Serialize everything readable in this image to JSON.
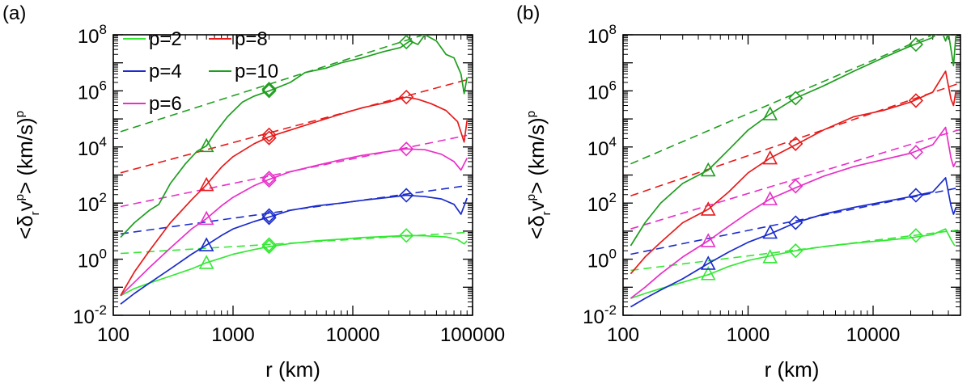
{
  "chart_data": [
    {
      "type": "line",
      "panel_label": "(a)",
      "xlabel": "r (km)",
      "ylabel_parts": {
        "open": "<δ",
        "sub": "r",
        "v": "v",
        "sup": "p",
        "close": "> (km/s)",
        "sup2": "p"
      },
      "xscale": "log",
      "yscale": "log",
      "xlim": [
        100,
        100000
      ],
      "ylim": [
        0.01,
        100000000
      ],
      "xticks": [
        100,
        1000,
        10000,
        100000
      ],
      "xticklabels": [
        "100",
        "1000",
        "10000",
        "100000"
      ],
      "yticks": [
        0.01,
        1,
        100,
        10000,
        1000000,
        100000000
      ],
      "ytick_mantissa": "10",
      "ytick_exponents": [
        "-2",
        "0",
        "2",
        "4",
        "6",
        "8"
      ],
      "legend": [
        "p=2",
        "p=8",
        "p=4",
        "p=10",
        "p=6"
      ],
      "series": [
        {
          "name": "p=2",
          "color": "#33e833",
          "x": [
            115,
            150,
            200,
            300,
            450,
            600,
            800,
            1000,
            1500,
            2000,
            3000,
            5000,
            8000,
            12000,
            20000,
            28000,
            40000,
            60000,
            75000,
            85000,
            90000
          ],
          "y": [
            0.05,
            0.09,
            0.14,
            0.25,
            0.45,
            0.75,
            1.1,
            1.5,
            2.2,
            2.8,
            3.6,
            4.5,
            5.2,
            5.9,
            6.5,
            7.0,
            6.8,
            6.2,
            5.0,
            3.5,
            4.5
          ],
          "fit_x": [
            115,
            90000
          ],
          "fit_y": [
            1.6,
            9.0
          ],
          "triangle": [
            600,
            0.75
          ],
          "diamonds": [
            [
              2000,
              2.8
            ],
            [
              2000,
              3.3
            ],
            [
              28000,
              7.0
            ]
          ]
        },
        {
          "name": "p=4",
          "color": "#1a2bcc",
          "x": [
            115,
            150,
            200,
            300,
            450,
            600,
            800,
            1000,
            1500,
            2000,
            3000,
            5000,
            8000,
            12000,
            20000,
            28000,
            40000,
            55000,
            70000,
            80000,
            90000
          ],
          "y": [
            0.025,
            0.06,
            0.14,
            0.45,
            1.5,
            3.2,
            7,
            12,
            22,
            32,
            55,
            80,
            100,
            125,
            160,
            190,
            170,
            140,
            90,
            40,
            150
          ],
          "fit_x": [
            115,
            90000
          ],
          "fit_y": [
            8,
            420
          ],
          "triangle": [
            600,
            3.2
          ],
          "diamonds": [
            [
              2000,
              30
            ],
            [
              2000,
              36
            ],
            [
              28000,
              190
            ]
          ]
        },
        {
          "name": "p=6",
          "color": "#e830c8",
          "x": [
            115,
            150,
            200,
            300,
            450,
            600,
            800,
            1000,
            1500,
            2000,
            3000,
            5000,
            8000,
            12000,
            20000,
            28000,
            40000,
            55000,
            70000,
            80000,
            90000
          ],
          "y": [
            0.05,
            0.15,
            0.5,
            2.5,
            12,
            28,
            80,
            160,
            420,
            700,
            1300,
            2200,
            3500,
            5000,
            7000,
            8500,
            8000,
            5500,
            3000,
            1500,
            4000
          ],
          "fit_x": [
            115,
            90000
          ],
          "fit_y": [
            75,
            26000
          ],
          "triangle": [
            600,
            28
          ],
          "diamonds": [
            [
              2000,
              650
            ],
            [
              2000,
              780
            ],
            [
              28000,
              8500
            ]
          ]
        },
        {
          "name": "p=8",
          "color": "#e81a1a",
          "x": [
            115,
            150,
            200,
            300,
            450,
            600,
            800,
            1000,
            1500,
            2000,
            3000,
            5000,
            8000,
            12000,
            20000,
            28000,
            35000,
            45000,
            60000,
            75000,
            85000,
            90000
          ],
          "y": [
            0.05,
            0.35,
            2,
            20,
            130,
            450,
            1900,
            4500,
            13000,
            23000,
            40000,
            80000,
            150000,
            250000,
            400000,
            600000,
            500000,
            350000,
            200000,
            80000,
            15000,
            90000
          ],
          "fit_x": [
            115,
            90000
          ],
          "fit_y": [
            1200,
            2500000
          ],
          "triangle": [
            600,
            450
          ],
          "diamonds": [
            [
              2000,
              21000
            ],
            [
              2000,
              27000
            ],
            [
              28000,
              600000
            ]
          ]
        },
        {
          "name": "p=10",
          "color": "#1e9e1e",
          "x": [
            115,
            150,
            200,
            240,
            300,
            400,
            500,
            600,
            700,
            900,
            1200,
            1500,
            2000,
            3000,
            4000,
            6000,
            8000,
            12000,
            18000,
            25000,
            30000,
            35000,
            40000,
            50000,
            60000,
            70000,
            80000,
            85000,
            90000
          ],
          "y": [
            6,
            20,
            55,
            90,
            500,
            2500,
            7000,
            11000,
            30000,
            120000,
            400000,
            650000,
            1000000,
            2000000,
            4500000,
            6500000,
            10000000,
            15000000,
            25000000,
            35000000,
            60000000,
            45000000,
            100000000,
            60000000,
            20000000,
            15000000,
            4000000,
            800000,
            3000000
          ],
          "fit_x": [
            115,
            65000
          ],
          "fit_y": [
            35000,
            200000000
          ],
          "triangle": [
            600,
            11000
          ],
          "diamonds": [
            [
              2000,
              1000000
            ],
            [
              2000,
              1150000
            ],
            [
              28000,
              55000000
            ]
          ]
        }
      ]
    },
    {
      "type": "line",
      "panel_label": "(b)",
      "xlabel": "r (km)",
      "ylabel_parts": {
        "open": "<δ",
        "sub": "r",
        "v": "v",
        "sup": "p",
        "close": "> (km/s)",
        "sup2": "p"
      },
      "xscale": "log",
      "yscale": "log",
      "xlim": [
        100,
        50000
      ],
      "ylim": [
        0.01,
        100000000
      ],
      "xticks": [
        100,
        1000,
        10000
      ],
      "xticklabels": [
        "100",
        "1000",
        "10000"
      ],
      "yticks": [
        0.01,
        1,
        100,
        10000,
        1000000,
        100000000
      ],
      "ytick_mantissa": "10",
      "ytick_exponents": [
        "-2",
        "0",
        "2",
        "4",
        "6",
        "8"
      ],
      "series": [
        {
          "name": "p=2",
          "color": "#33e833",
          "x": [
            115,
            150,
            200,
            300,
            480,
            700,
            1000,
            1500,
            2400,
            4000,
            7000,
            12000,
            20000,
            30000,
            38000,
            42000,
            45000
          ],
          "y": [
            0.04,
            0.06,
            0.09,
            0.15,
            0.28,
            0.55,
            0.9,
            1.3,
            2.0,
            2.8,
            3.7,
            4.6,
            5.8,
            7.5,
            12,
            5,
            3
          ],
          "fit_x": [
            115,
            48000
          ],
          "fit_y": [
            0.4,
            11
          ],
          "triangles": [
            [
              480,
              0.3
            ],
            [
              1500,
              1.2
            ]
          ],
          "diamonds": [
            [
              2400,
              2.0
            ],
            [
              22000,
              7.0
            ]
          ]
        },
        {
          "name": "p=4",
          "color": "#1a2bcc",
          "x": [
            115,
            150,
            200,
            300,
            480,
            700,
            1000,
            1500,
            2400,
            4000,
            7000,
            12000,
            20000,
            30000,
            38000,
            42000,
            44000,
            46000
          ],
          "y": [
            0.02,
            0.04,
            0.08,
            0.2,
            0.7,
            1.8,
            4,
            8,
            20,
            40,
            70,
            110,
            170,
            250,
            800,
            80,
            40,
            70
          ],
          "fit_x": [
            115,
            48000
          ],
          "fit_y": [
            1.5,
            350
          ],
          "triangles": [
            [
              480,
              0.7
            ],
            [
              1500,
              9
            ]
          ],
          "diamonds": [
            [
              2400,
              20
            ],
            [
              22000,
              190
            ]
          ]
        },
        {
          "name": "p=6",
          "color": "#e830c8",
          "x": [
            115,
            150,
            200,
            300,
            480,
            700,
            1000,
            1500,
            2400,
            4000,
            7000,
            12000,
            20000,
            30000,
            38000,
            42000,
            44000,
            46000
          ],
          "y": [
            0.04,
            0.1,
            0.3,
            1.2,
            4.5,
            15,
            45,
            140,
            350,
            900,
            2000,
            3500,
            6000,
            12000,
            50000,
            4000,
            2000,
            3000
          ],
          "fit_x": [
            115,
            48000
          ],
          "fit_y": [
            12,
            40000
          ],
          "triangles": [
            [
              480,
              4.5
            ],
            [
              1500,
              140
            ]
          ],
          "diamonds": [
            [
              2400,
              400
            ],
            [
              22000,
              6500
            ]
          ]
        },
        {
          "name": "p=8",
          "color": "#e81a1a",
          "x": [
            115,
            150,
            200,
            300,
            480,
            700,
            1000,
            1500,
            2400,
            4000,
            7000,
            12000,
            20000,
            30000,
            38000,
            42000,
            44000,
            46000
          ],
          "y": [
            0.3,
            1.2,
            4,
            20,
            60,
            250,
            1200,
            4000,
            12000,
            40000,
            120000,
            200000,
            400000,
            900000,
            5000000,
            500000,
            300000,
            1000000
          ],
          "fit_x": [
            115,
            48000
          ],
          "fit_y": [
            180,
            1800000
          ],
          "triangles": [
            [
              480,
              60
            ],
            [
              1500,
              4000
            ]
          ],
          "diamonds": [
            [
              2400,
              13000
            ],
            [
              22000,
              450000
            ]
          ]
        },
        {
          "name": "p=10",
          "color": "#1e9e1e",
          "x": [
            115,
            150,
            200,
            300,
            480,
            700,
            1000,
            1500,
            2400,
            4000,
            7000,
            12000,
            20000,
            30000,
            35000,
            38000,
            40000,
            42000,
            44000,
            46000
          ],
          "y": [
            3,
            20,
            100,
            500,
            1500,
            8000,
            40000,
            150000,
            550000,
            1500000,
            5000000,
            15000000,
            40000000,
            80000000,
            150000000,
            60000000,
            120000000,
            30000000,
            8000000,
            100000000
          ],
          "fit_x": [
            115,
            30000
          ],
          "fit_y": [
            2500,
            100000000
          ],
          "triangles": [
            [
              480,
              1500
            ],
            [
              1500,
              150000
            ]
          ],
          "diamonds": [
            [
              2400,
              550000
            ],
            [
              22000,
              45000000
            ]
          ]
        }
      ]
    }
  ]
}
